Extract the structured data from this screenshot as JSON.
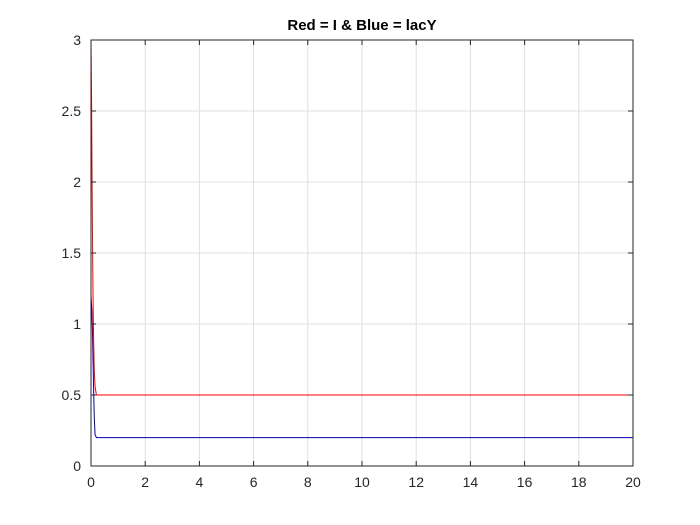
{
  "chart_data": {
    "type": "line",
    "title": "Red = I & Blue = lacY",
    "xlabel": "",
    "ylabel": "",
    "xlim": [
      0,
      20
    ],
    "ylim": [
      0,
      3
    ],
    "xticks": [
      0,
      2,
      4,
      6,
      8,
      10,
      12,
      14,
      16,
      18,
      20
    ],
    "xtick_labels": [
      "0",
      "2",
      "4",
      "6",
      "8",
      "10",
      "12",
      "14",
      "16",
      "18",
      "20"
    ],
    "yticks": [
      0,
      0.5,
      1,
      1.5,
      2,
      2.5,
      3
    ],
    "ytick_labels": [
      "0",
      "0.5",
      "1",
      "1.5",
      "2",
      "2.5",
      "3"
    ],
    "grid": true,
    "series": [
      {
        "color": "#ff0000",
        "x": [
          0,
          0.02,
          0.04,
          0.06,
          0.08,
          0.1,
          0.12,
          0.15,
          0.2,
          0.3,
          0.5,
          1,
          20
        ],
        "y": [
          3.0,
          2.6,
          2.0,
          1.5,
          1.1,
          0.85,
          0.68,
          0.56,
          0.5,
          0.5,
          0.5,
          0.5,
          0.5
        ]
      },
      {
        "color": "#0000aa",
        "x": [
          0,
          0.03,
          0.06,
          0.09,
          0.12,
          0.15,
          0.2,
          0.3,
          0.5,
          1,
          20
        ],
        "y": [
          1.2,
          1.1,
          0.9,
          0.6,
          0.35,
          0.22,
          0.2,
          0.2,
          0.2,
          0.2,
          0.2
        ]
      }
    ]
  }
}
